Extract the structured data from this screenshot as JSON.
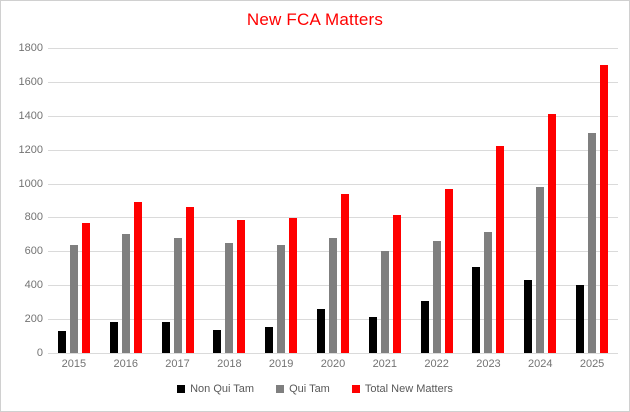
{
  "title": "New FCA Matters",
  "colors": {
    "title": "#ff0000",
    "non_qui_tam": "#000000",
    "qui_tam": "#7f7f7f",
    "total_new_matters": "#ff0000",
    "gridline": "#dadada",
    "axis_label": "#737373",
    "frame_border": "#d0d0d0",
    "background": "#ffffff"
  },
  "chart_data": {
    "type": "bar",
    "title": "New FCA Matters",
    "categories": [
      "2015",
      "2016",
      "2017",
      "2018",
      "2019",
      "2020",
      "2021",
      "2022",
      "2023",
      "2024",
      "2025"
    ],
    "series": [
      {
        "name": "Non Qui Tam",
        "color": "#000000",
        "values": [
          130,
          185,
          180,
          135,
          155,
          260,
          215,
          305,
          505,
          430,
          400
        ]
      },
      {
        "name": "Qui Tam",
        "color": "#7f7f7f",
        "values": [
          640,
          705,
          680,
          650,
          640,
          680,
          600,
          660,
          715,
          980,
          1300
        ]
      },
      {
        "name": "Total New Matters",
        "color": "#ff0000",
        "values": [
          770,
          890,
          860,
          785,
          795,
          940,
          815,
          965,
          1220,
          1410,
          1700
        ]
      }
    ],
    "xlabel": "",
    "ylabel": "",
    "ylim": [
      0,
      1800
    ],
    "yticks": [
      0,
      200,
      400,
      600,
      800,
      1000,
      1200,
      1400,
      1600,
      1800
    ],
    "grid": true,
    "legend_position": "bottom"
  }
}
